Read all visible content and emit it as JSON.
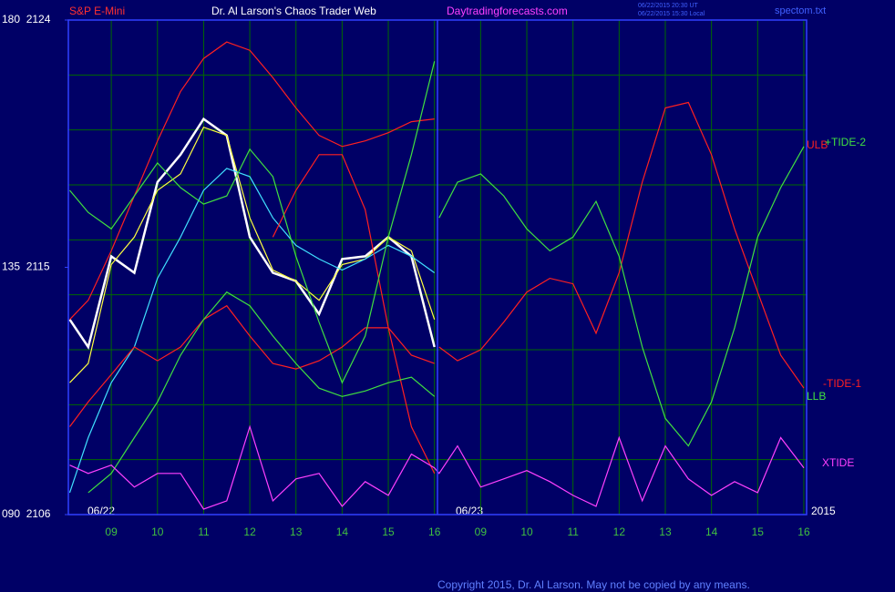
{
  "chart_data": {
    "type": "line",
    "title": "Dr. Al Larson's Chaos Trader Web",
    "instrument": "S&P E-Mini",
    "site": "Daytradingforecasts.com",
    "timestamps": [
      "06/22/2015 20:30 UT",
      "06/22/2015 15:30 Local"
    ],
    "file": "spectom.txt",
    "copyright": "Copyright 2015, Dr. Al Larson. May not be copied by any means.",
    "dates": [
      "06/22",
      "06/23",
      "2015"
    ],
    "xlim": [
      0.07,
      16.06
    ],
    "ylim": [
      2106,
      2124
    ],
    "xticks": [
      {
        "value": 1,
        "label": "09"
      },
      {
        "value": 2,
        "label": "10"
      },
      {
        "value": 3,
        "label": "11"
      },
      {
        "value": 4,
        "label": "12"
      },
      {
        "value": 5,
        "label": "13"
      },
      {
        "value": 6,
        "label": "14"
      },
      {
        "value": 7,
        "label": "15"
      },
      {
        "value": 8,
        "label": "16"
      },
      {
        "value": 9,
        "label": "09"
      },
      {
        "value": 10,
        "label": "10"
      },
      {
        "value": 11,
        "label": "11"
      },
      {
        "value": 12,
        "label": "12"
      },
      {
        "value": 13,
        "label": "13"
      },
      {
        "value": 14,
        "label": "14"
      },
      {
        "value": 15,
        "label": "15"
      },
      {
        "value": 16,
        "label": "16"
      }
    ],
    "yticks": [
      {
        "value": 2106,
        "label": "090  2106"
      },
      {
        "value": 2115,
        "label": "135  2115"
      },
      {
        "value": 2124,
        "label": "180  2124"
      }
    ],
    "ygrid": [
      2106,
      2108,
      2110,
      2112,
      2114,
      2116,
      2118,
      2120,
      2122,
      2124
    ],
    "grid": true,
    "x": [
      0.1,
      0.5,
      1,
      1.5,
      2,
      2.5,
      3,
      3.5,
      4,
      4.5,
      5,
      5.5,
      6,
      6.5,
      7,
      7.5,
      8,
      8.1,
      8.5,
      9,
      9.5,
      10,
      10.5,
      11,
      11.5,
      12,
      12.5,
      13,
      13.5,
      14,
      14.5,
      15,
      15.5,
      16
    ],
    "series": [
      {
        "color": "#ffffff",
        "values": [
          2113.1,
          2112.1,
          2115.4,
          2114.8,
          2118.1,
          2119.1,
          2120.4,
          2119.8,
          2116.1,
          2114.8,
          2114.5,
          2113.3,
          2115.3,
          2115.4,
          2116.1,
          2115.4,
          2112.1,
          null,
          null,
          null,
          null,
          null,
          null,
          null,
          null,
          null,
          null,
          null,
          null,
          null,
          null,
          null,
          null,
          null
        ]
      },
      {
        "color": "#ffff40",
        "values": [
          2110.8,
          2111.5,
          2115.1,
          2116.1,
          2117.8,
          2118.4,
          2120.1,
          2119.8,
          2116.8,
          2114.9,
          2114.5,
          2113.8,
          2115.1,
          2115.3,
          2116.1,
          2115.6,
          2113.1,
          null,
          null,
          null,
          null,
          null,
          null,
          null,
          null,
          null,
          null,
          null,
          null,
          null,
          null,
          null,
          null,
          null
        ]
      },
      {
        "color": "#40e0ff",
        "values": [
          2106.8,
          2108.8,
          2110.8,
          2112.1,
          2114.6,
          2116.1,
          2117.8,
          2118.6,
          2118.3,
          2116.8,
          2115.8,
          2115.3,
          2114.9,
          2115.3,
          2115.8,
          2115.4,
          2114.8,
          null,
          null,
          null,
          null,
          null,
          null,
          null,
          null,
          null,
          null,
          null,
          null,
          null,
          null,
          null,
          null,
          null
        ]
      },
      {
        "name": "ULB",
        "color": "#ff2020",
        "values": [
          2113.1,
          2113.8,
          2115.6,
          2117.6,
          2119.6,
          2121.4,
          2122.6,
          2123.2,
          2122.9,
          2121.9,
          2120.8,
          2119.8,
          2119.4,
          2119.6,
          2119.9,
          2120.3,
          2120.4,
          null,
          null,
          null,
          null,
          null,
          null,
          null,
          null,
          null,
          null,
          null,
          null,
          null,
          null,
          null,
          null,
          null
        ]
      },
      {
        "color": "#ff2020",
        "values": [
          2109.2,
          2110.1,
          2111.1,
          2112.1,
          2111.6,
          2112.1,
          2113.1,
          2113.6,
          2112.5,
          2111.5,
          2111.3,
          2111.6,
          2112.1,
          2112.8,
          2112.8,
          2111.8,
          2111.5,
          null,
          null,
          null,
          null,
          null,
          null,
          null,
          null,
          null,
          null,
          null,
          null,
          null,
          null,
          null,
          null,
          null
        ]
      },
      {
        "color": "#ff2020",
        "values": [
          null,
          null,
          null,
          null,
          null,
          null,
          null,
          null,
          null,
          2116.1,
          2117.8,
          2119.1,
          2119.1,
          2117.1,
          2112.8,
          2109.2,
          2107.5,
          null,
          null,
          null,
          null,
          null,
          null,
          null,
          null,
          null,
          null,
          null,
          null,
          null,
          null,
          null,
          null,
          null
        ]
      },
      {
        "name": "-TIDE-1",
        "color": "#ff2020",
        "values": [
          null,
          null,
          null,
          null,
          null,
          null,
          null,
          null,
          null,
          null,
          null,
          null,
          null,
          null,
          null,
          null,
          null,
          2112.1,
          2111.6,
          2112.0,
          2113.0,
          2114.1,
          2114.6,
          2114.4,
          2112.6,
          2114.8,
          2118.1,
          2120.8,
          2121.0,
          2119.1,
          2116.4,
          2114.1,
          2111.8,
          2110.6
        ]
      },
      {
        "color": "#40e040",
        "values": [
          2117.8,
          2117.0,
          2116.4,
          2117.6,
          2118.8,
          2117.9,
          2117.3,
          2117.6,
          2119.3,
          2118.3,
          2115.4,
          2113.0,
          2110.8,
          2112.5,
          2116.1,
          2119.1,
          2122.5,
          null,
          null,
          null,
          null,
          null,
          null,
          null,
          null,
          null,
          null,
          null,
          null,
          null,
          null,
          null,
          null,
          null
        ]
      },
      {
        "name": "+TIDE-2",
        "color": "#40e040",
        "values": [
          null,
          null,
          null,
          null,
          null,
          null,
          null,
          null,
          null,
          null,
          null,
          null,
          null,
          null,
          null,
          null,
          null,
          2116.8,
          2118.1,
          2118.4,
          2117.6,
          2116.4,
          2115.6,
          2116.1,
          2117.4,
          2115.4,
          2112.1,
          2109.5,
          2108.5,
          2110.1,
          2112.8,
          2116.1,
          2117.9,
          2119.4
        ]
      },
      {
        "name": "LLB",
        "color": "#40e040",
        "values": [
          null,
          2106.8,
          2107.5,
          2108.8,
          2110.1,
          2111.8,
          2113.1,
          2114.1,
          2113.6,
          2112.5,
          2111.5,
          2110.6,
          2110.3,
          2110.5,
          2110.8,
          2111.0,
          2110.3,
          null,
          null,
          null,
          null,
          null,
          null,
          null,
          null,
          null,
          null,
          null,
          null,
          null,
          null,
          null,
          null,
          null
        ]
      },
      {
        "name": "XTIDE",
        "color": "#ff40ff",
        "values": [
          2107.8,
          2107.5,
          2107.8,
          2107.0,
          2107.5,
          2107.5,
          2106.2,
          2106.5,
          2109.2,
          2106.5,
          2107.3,
          2107.5,
          2106.3,
          2107.2,
          2106.7,
          2108.2,
          2107.7,
          2107.5,
          2108.5,
          2107.0,
          2107.3,
          2107.6,
          2107.2,
          2106.7,
          2106.3,
          2108.8,
          2106.5,
          2108.5,
          2107.3,
          2106.7,
          2107.2,
          2106.8,
          2108.8,
          2107.7
        ]
      }
    ]
  }
}
